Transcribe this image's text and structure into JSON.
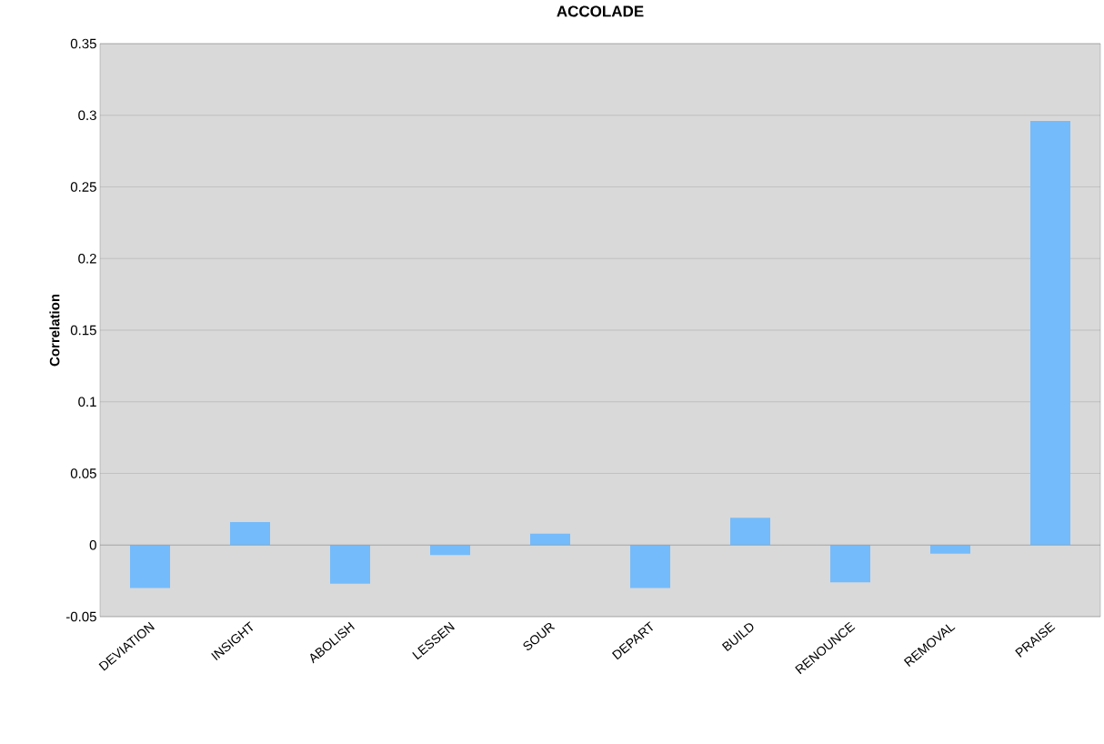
{
  "chart_data": {
    "type": "bar",
    "title": "ACCOLADE",
    "ylabel": "Correlation",
    "categories": [
      "DEVIATION",
      "INSIGHT",
      "ABOLISH",
      "LESSEN",
      "SOUR",
      "DEPART",
      "BUILD",
      "RENOUNCE",
      "REMOVAL",
      "PRAISE"
    ],
    "values": [
      -0.03,
      0.016,
      -0.027,
      -0.007,
      0.008,
      -0.03,
      0.019,
      -0.026,
      -0.006,
      0.296
    ],
    "color": "#74bbfb",
    "ylim": [
      -0.05,
      0.35
    ],
    "yticks": [
      -0.05,
      0,
      0.05,
      0.1,
      0.15,
      0.2,
      0.25,
      0.3,
      0.35
    ],
    "grid": "y"
  }
}
